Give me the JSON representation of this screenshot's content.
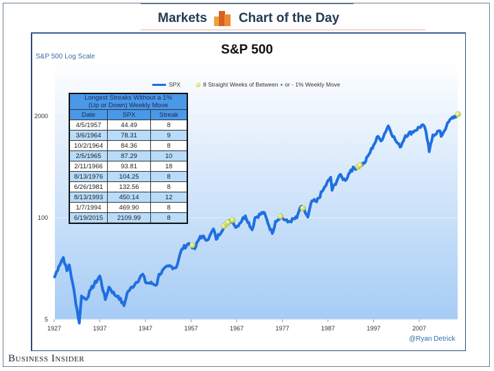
{
  "header": {
    "left": "Markets",
    "right": "Chart of the Day"
  },
  "footer": {
    "brand": "Business Insider",
    "credit": "@Ryan Detrick"
  },
  "table": {
    "caption_line1": "Longest Streaks Without a 1%",
    "caption_line2": "(Up or Down) Weekly Move",
    "columns": [
      "Date",
      "SPX",
      "Streak"
    ],
    "rows": [
      [
        "4/5/1957",
        "44.49",
        "8"
      ],
      [
        "3/6/1964",
        "78.31",
        "9"
      ],
      [
        "10/2/1964",
        "84.36",
        "8"
      ],
      [
        "2/5/1965",
        "87.29",
        "10"
      ],
      [
        "2/11/1966",
        "93.81",
        "18"
      ],
      [
        "8/13/1976",
        "104.25",
        "8"
      ],
      [
        "6/26/1981",
        "132.56",
        "8"
      ],
      [
        "8/13/1993",
        "450.14",
        "12"
      ],
      [
        "1/7/1994",
        "469.90",
        "8"
      ],
      [
        "6/19/2015",
        "2109.99",
        "8"
      ]
    ]
  },
  "chart_data": {
    "type": "line",
    "title": "S&P 500",
    "ylabel": "S&P 500 Log Scale",
    "yscale": "log",
    "ylim": [
      5,
      2400
    ],
    "yticks": [
      5,
      100,
      2000
    ],
    "xlim": [
      1927,
      2016
    ],
    "xticks": [
      1927,
      1937,
      1947,
      1957,
      1967,
      1977,
      1987,
      1997,
      2007
    ],
    "legend": {
      "placement": "top",
      "entries": [
        "SPX",
        "8 Straight Weeks of Between + or - 1% Weekly Move"
      ]
    },
    "series": [
      {
        "name": "SPX",
        "color": "#1f6fe0",
        "points": [
          [
            1927,
            17
          ],
          [
            1928,
            24
          ],
          [
            1929,
            31
          ],
          [
            1929.8,
            21
          ],
          [
            1930.3,
            25
          ],
          [
            1931,
            15
          ],
          [
            1932.5,
            4.5
          ],
          [
            1933,
            10
          ],
          [
            1934,
            9
          ],
          [
            1935,
            12
          ],
          [
            1937,
            18
          ],
          [
            1938.2,
            9
          ],
          [
            1939,
            13
          ],
          [
            1940.5,
            10
          ],
          [
            1941,
            10
          ],
          [
            1942.3,
            7.5
          ],
          [
            1943,
            11
          ],
          [
            1945,
            15
          ],
          [
            1946.4,
            19
          ],
          [
            1947,
            15
          ],
          [
            1949.5,
            14
          ],
          [
            1950,
            19
          ],
          [
            1952,
            24
          ],
          [
            1953.7,
            23
          ],
          [
            1955,
            40
          ],
          [
            1956.5,
            47
          ],
          [
            1957,
            44.5
          ],
          [
            1957.8,
            40
          ],
          [
            1959,
            58
          ],
          [
            1960.8,
            53
          ],
          [
            1961.9,
            72
          ],
          [
            1962.5,
            53
          ],
          [
            1964.2,
            78
          ],
          [
            1964.8,
            84
          ],
          [
            1965.1,
            87
          ],
          [
            1966.1,
            94
          ],
          [
            1966.8,
            75
          ],
          [
            1968.9,
            106
          ],
          [
            1970.4,
            70
          ],
          [
            1971,
            100
          ],
          [
            1972.9,
            118
          ],
          [
            1974.8,
            63
          ],
          [
            1975.5,
            90
          ],
          [
            1976.6,
            104
          ],
          [
            1978.2,
            88
          ],
          [
            1980.2,
            100
          ],
          [
            1980.9,
            135
          ],
          [
            1981.5,
            132
          ],
          [
            1982.6,
            102
          ],
          [
            1983.5,
            165
          ],
          [
            1984.5,
            160
          ],
          [
            1986,
            230
          ],
          [
            1987.6,
            330
          ],
          [
            1987.9,
            225
          ],
          [
            1989.5,
            350
          ],
          [
            1990.8,
            300
          ],
          [
            1992,
            410
          ],
          [
            1993.6,
            450
          ],
          [
            1994,
            470
          ],
          [
            1995,
            500
          ],
          [
            1996,
            650
          ],
          [
            1997,
            850
          ],
          [
            1998,
            1100
          ],
          [
            1998.6,
            960
          ],
          [
            2000.2,
            1500
          ],
          [
            2001.7,
            1000
          ],
          [
            2002.8,
            800
          ],
          [
            2004,
            1130
          ],
          [
            2006,
            1300
          ],
          [
            2007.8,
            1550
          ],
          [
            2008.5,
            1250
          ],
          [
            2009.2,
            700
          ],
          [
            2010,
            1150
          ],
          [
            2011.5,
            1300
          ],
          [
            2011.8,
            1100
          ],
          [
            2013,
            1500
          ],
          [
            2014,
            1850
          ],
          [
            2015.5,
            2110
          ]
        ]
      }
    ],
    "markers": [
      [
        1957.3,
        44.49
      ],
      [
        1964.2,
        78.31
      ],
      [
        1964.8,
        84.36
      ],
      [
        1965.1,
        87.29
      ],
      [
        1966.1,
        93.81
      ],
      [
        1976.6,
        104.25
      ],
      [
        1981.5,
        132.56
      ],
      [
        1993.6,
        450.14
      ],
      [
        1994,
        469.9
      ],
      [
        2015.5,
        2109.99
      ]
    ],
    "colors": {
      "line": "#1f6fe0",
      "marker": "#d4e04a",
      "bg_top": "#ffffff",
      "bg_bottom": "#a6ccf5"
    }
  }
}
